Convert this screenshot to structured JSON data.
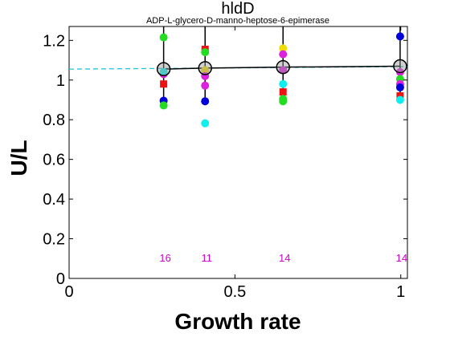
{
  "chart_data": {
    "type": "scatter",
    "title": "hldD",
    "subtitle": "ADP-L-glycero-D-manno-heptose-6-epimerase",
    "xlabel": "Growth rate",
    "ylabel": "U/L",
    "xlim": [
      0,
      1.02
    ],
    "ylim": [
      0,
      1.27
    ],
    "xticks": [
      0,
      0.5,
      1
    ],
    "xtick_labels": [
      "0",
      "0.5",
      "1"
    ],
    "yticks": [
      0,
      0.2,
      0.4,
      0.6,
      0.8,
      1.0,
      1.2
    ],
    "ytick_labels": [
      "0",
      "0.2",
      "0.4",
      "0.6",
      "0.8",
      "1",
      "1.2"
    ],
    "grid": false,
    "x": [
      0.285,
      0.41,
      0.645,
      0.998
    ],
    "counts": [
      "16",
      "11",
      "14",
      "14"
    ],
    "mean": [
      1.055,
      1.06,
      1.065,
      1.07
    ],
    "error_upper": [
      1.27,
      1.27,
      1.27,
      1.27
    ],
    "error_lower": [
      0.88,
      0.88,
      0.88,
      0.88
    ],
    "fit_line": {
      "x": [
        0,
        1.02
      ],
      "y": [
        1.055,
        1.068
      ],
      "color": "#22c4dd"
    },
    "colors": {
      "blue": "#0000dd",
      "green": "#22dd22",
      "red": "#ee1111",
      "magenta": "#dd22dd",
      "cyan": "#11eeee",
      "yellow": "#eedd00",
      "count": "#cc00cc",
      "mean_marker": "#999999"
    },
    "points": [
      {
        "x": 0.285,
        "y": 1.215,
        "color": "green",
        "shape": "circle"
      },
      {
        "x": 0.285,
        "y": 0.896,
        "color": "blue",
        "shape": "circle"
      },
      {
        "x": 0.285,
        "y": 0.872,
        "color": "green",
        "shape": "circle"
      },
      {
        "x": 0.285,
        "y": 0.98,
        "color": "red",
        "shape": "square"
      },
      {
        "x": 0.285,
        "y": 1.03,
        "color": "magenta",
        "shape": "circle"
      },
      {
        "x": 0.285,
        "y": 1.04,
        "color": "cyan",
        "shape": "circle"
      },
      {
        "x": 0.41,
        "y": 1.155,
        "color": "red",
        "shape": "square"
      },
      {
        "x": 0.41,
        "y": 1.14,
        "color": "green",
        "shape": "circle"
      },
      {
        "x": 0.41,
        "y": 1.05,
        "color": "yellow",
        "shape": "circle"
      },
      {
        "x": 0.41,
        "y": 1.02,
        "color": "magenta",
        "shape": "circle"
      },
      {
        "x": 0.41,
        "y": 0.972,
        "color": "magenta",
        "shape": "circle"
      },
      {
        "x": 0.41,
        "y": 0.893,
        "color": "blue",
        "shape": "circle"
      },
      {
        "x": 0.41,
        "y": 0.782,
        "color": "cyan",
        "shape": "circle"
      },
      {
        "x": 0.645,
        "y": 1.16,
        "color": "yellow",
        "shape": "circle"
      },
      {
        "x": 0.645,
        "y": 1.13,
        "color": "magenta",
        "shape": "circle"
      },
      {
        "x": 0.645,
        "y": 1.05,
        "color": "magenta",
        "shape": "circle"
      },
      {
        "x": 0.645,
        "y": 0.98,
        "color": "cyan",
        "shape": "circle"
      },
      {
        "x": 0.645,
        "y": 0.94,
        "color": "red",
        "shape": "square"
      },
      {
        "x": 0.645,
        "y": 0.905,
        "color": "green",
        "shape": "circle"
      },
      {
        "x": 0.645,
        "y": 0.893,
        "color": "green",
        "shape": "circle"
      },
      {
        "x": 0.998,
        "y": 1.22,
        "color": "blue",
        "shape": "circle"
      },
      {
        "x": 0.998,
        "y": 1.04,
        "color": "magenta",
        "shape": "circle"
      },
      {
        "x": 0.998,
        "y": 1.005,
        "color": "green",
        "shape": "circle"
      },
      {
        "x": 0.998,
        "y": 0.98,
        "color": "magenta",
        "shape": "circle"
      },
      {
        "x": 0.998,
        "y": 0.963,
        "color": "blue",
        "shape": "circle"
      },
      {
        "x": 0.998,
        "y": 0.92,
        "color": "red",
        "shape": "square"
      },
      {
        "x": 0.998,
        "y": 0.9,
        "color": "cyan",
        "shape": "circle"
      }
    ]
  }
}
